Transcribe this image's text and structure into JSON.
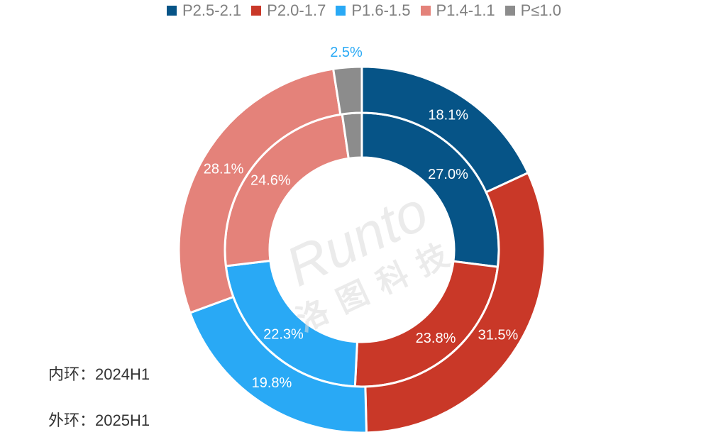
{
  "chart_data": {
    "type": "pie",
    "subtype": "double-donut",
    "legend_position": "top",
    "categories": [
      "P2.5-2.1",
      "P2.0-1.7",
      "P1.6-1.5",
      "P1.4-1.1",
      "P≤1.0"
    ],
    "colors": [
      "#065487",
      "#c93828",
      "#29a9f5",
      "#e4827a",
      "#8c8c8c"
    ],
    "series": [
      {
        "name": "2024H1",
        "ring": "inner",
        "values": [
          27.0,
          23.8,
          22.3,
          24.6,
          2.3
        ],
        "labels": [
          "27.0%",
          "23.8%",
          "22.3%",
          "24.6%",
          ""
        ]
      },
      {
        "name": "2025H1",
        "ring": "outer",
        "values": [
          18.1,
          31.5,
          19.8,
          28.1,
          2.5
        ],
        "labels": [
          "18.1%",
          "31.5%",
          "19.8%",
          "28.1%",
          "2.5%"
        ]
      }
    ],
    "annotations": {
      "inner": "内环：2024H1",
      "outer": "外环：2025H1"
    },
    "outside_label_color": "#29a9f5"
  },
  "watermark": {
    "text": "Runto",
    "subtext": "洛图科技"
  }
}
